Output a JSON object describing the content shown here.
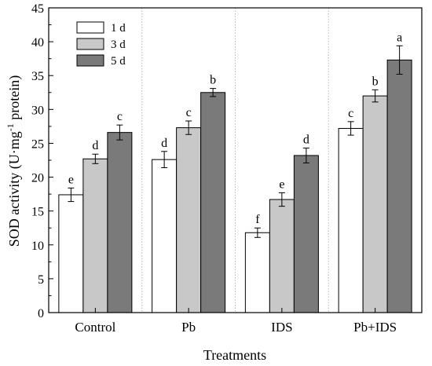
{
  "chart_data": {
    "type": "bar",
    "title": "",
    "xlabel": "Treatments",
    "ylabel": {
      "before": "SOD activity (U·mg",
      "sup": "-1",
      "after": " protein)"
    },
    "ylim": [
      0,
      45
    ],
    "yticks": [
      0,
      5,
      10,
      15,
      20,
      25,
      30,
      35,
      40,
      45
    ],
    "categories": [
      "Control",
      "Pb",
      "IDS",
      "Pb+IDS"
    ],
    "legend_position": "top-left",
    "series": [
      {
        "name": "1 d",
        "color": "#ffffff",
        "values": [
          17.4,
          22.6,
          11.8,
          27.2
        ],
        "errors": [
          1.0,
          1.2,
          0.7,
          1.0
        ],
        "letters": [
          "e",
          "d",
          "f",
          "c"
        ]
      },
      {
        "name": "3 d",
        "color": "#c8c8c8",
        "values": [
          22.7,
          27.3,
          16.7,
          32.0
        ],
        "errors": [
          0.7,
          1.0,
          1.0,
          0.9
        ],
        "letters": [
          "d",
          "c",
          "e",
          "b"
        ]
      },
      {
        "name": "5 d",
        "color": "#7a7a7a",
        "values": [
          26.6,
          32.5,
          23.2,
          37.3
        ],
        "errors": [
          1.1,
          0.6,
          1.1,
          2.1
        ],
        "letters": [
          "c",
          "b",
          "d",
          "a"
        ]
      }
    ]
  }
}
